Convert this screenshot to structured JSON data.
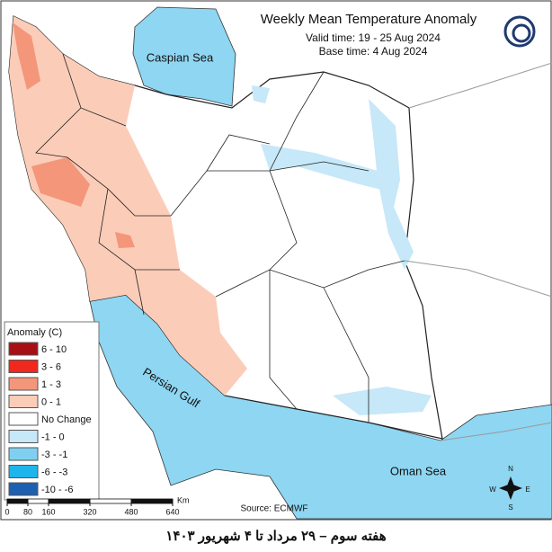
{
  "header": {
    "title": "Weekly Mean Temperature Anomaly",
    "valid_time": "Valid time: 19 - 25 Aug 2024",
    "base_time": "Base time: 4 Aug 2024"
  },
  "map": {
    "labels": {
      "caspian": "Caspian Sea",
      "gulf": "Persian Gulf",
      "oman": "Oman Sea"
    },
    "source": "Source: ECMWF",
    "compass": {
      "n": "N",
      "e": "E",
      "s": "S",
      "w": "W"
    }
  },
  "legend": {
    "title": "Anomaly (C)",
    "items": [
      {
        "label": "6 - 10",
        "color": "#a50f15"
      },
      {
        "label": "3 - 6",
        "color": "#f0281e"
      },
      {
        "label": "1 - 3",
        "color": "#f4967a"
      },
      {
        "label": "0 - 1",
        "color": "#fbcdb9"
      },
      {
        "label": "No Change",
        "color": "#ffffff"
      },
      {
        "label": "-1 - 0",
        "color": "#c6e8f8"
      },
      {
        "label": "-3 - -1",
        "color": "#7fd0f0"
      },
      {
        "label": "-6 - -3",
        "color": "#1fb4ec"
      },
      {
        "label": "-10 - -6",
        "color": "#1f5fb0"
      }
    ]
  },
  "scale_bar": {
    "ticks": [
      0,
      80,
      160,
      320,
      480,
      640
    ],
    "unit": "Km"
  },
  "caption": "هفته سوم – ۲۹ مرداد تا ۴ شهریور ۱۴۰۳"
}
